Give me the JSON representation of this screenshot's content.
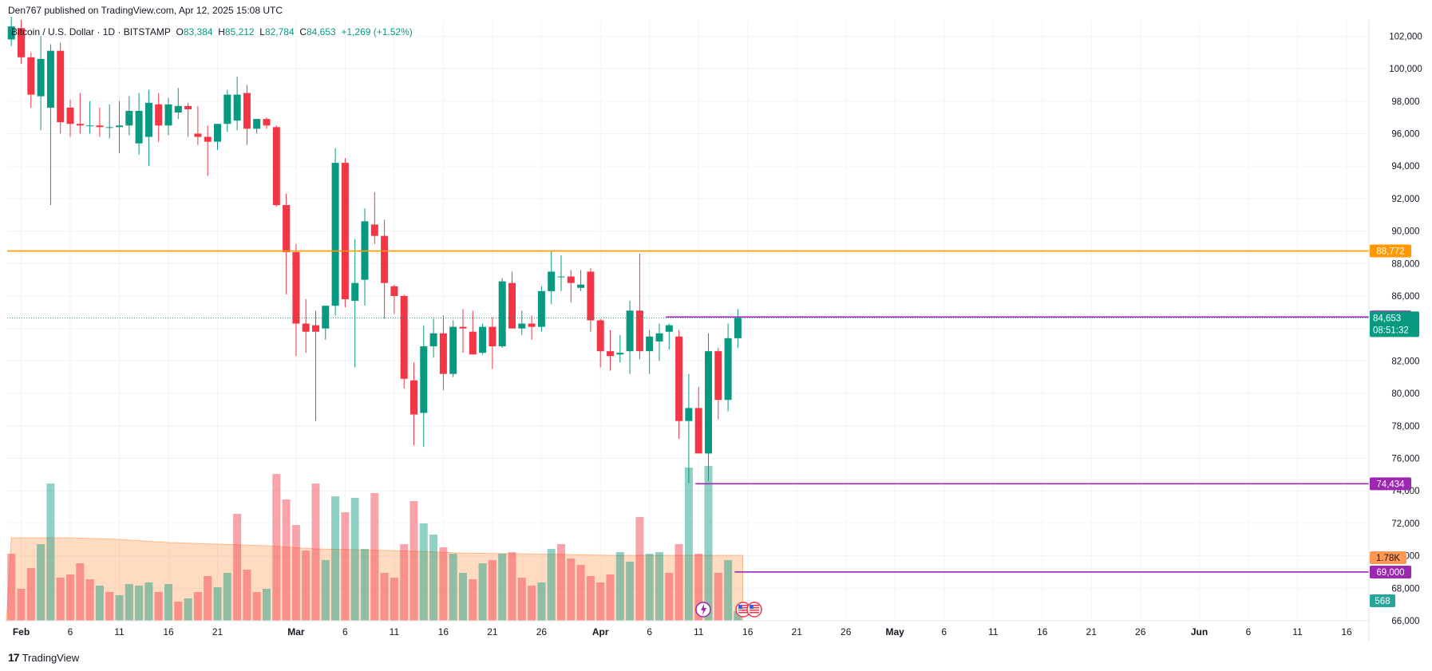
{
  "header": {
    "published": "Den767 published on TradingView.com, Apr 12, 2025 15:08 UTC"
  },
  "legend": {
    "symbol": "Bitcoin / U.S. Dollar · 1D · BITSTAMP",
    "o_label": "O",
    "o_value": "83,384",
    "h_label": "H",
    "h_value": "85,212",
    "l_label": "L",
    "l_value": "82,784",
    "c_label": "C",
    "c_value": "84,653",
    "change": "+1,269 (+1.52%)"
  },
  "footer": {
    "brand": "TradingView",
    "brand_mark": "17"
  },
  "colors": {
    "up": "#089981",
    "down": "#f23645",
    "vol_up": "rgba(8,153,129,0.45)",
    "vol_down": "rgba(242,54,69,0.45)",
    "vol_ma_fill": "rgba(255,152,80,0.35)",
    "orange_line": "#ff9800",
    "purple_line": "#9c27b0",
    "grid": "#f0f3fa",
    "axis_text": "#131722"
  },
  "chart_data": {
    "type": "candlestick",
    "y_axis": {
      "min": 66000,
      "max": 103000,
      "ticks": [
        66000,
        68000,
        70000,
        72000,
        74000,
        76000,
        78000,
        80000,
        82000,
        84000,
        86000,
        88000,
        90000,
        92000,
        94000,
        96000,
        98000,
        100000,
        102000
      ],
      "tick_labels": [
        "66,000",
        "68,000",
        "70,000",
        "72,000",
        "74,000",
        "76,000",
        "78,000",
        "80,000",
        "82,000",
        "84,000",
        "86,000",
        "88,000",
        "90,000",
        "92,000",
        "94,000",
        "96,000",
        "98,000",
        "100,000",
        "102,000"
      ]
    },
    "x_axis": {
      "labels": [
        {
          "day": 0,
          "text": "Feb",
          "bold": true
        },
        {
          "day": 5,
          "text": "6"
        },
        {
          "day": 10,
          "text": "11"
        },
        {
          "day": 15,
          "text": "16"
        },
        {
          "day": 20,
          "text": "21"
        },
        {
          "day": 28,
          "text": "Mar",
          "bold": true
        },
        {
          "day": 33,
          "text": "6"
        },
        {
          "day": 38,
          "text": "11"
        },
        {
          "day": 43,
          "text": "16"
        },
        {
          "day": 48,
          "text": "21"
        },
        {
          "day": 53,
          "text": "26"
        },
        {
          "day": 59,
          "text": "Apr",
          "bold": true
        },
        {
          "day": 64,
          "text": "6"
        },
        {
          "day": 69,
          "text": "11"
        },
        {
          "day": 74,
          "text": "16"
        },
        {
          "day": 79,
          "text": "21"
        },
        {
          "day": 84,
          "text": "26"
        },
        {
          "day": 89,
          "text": "May",
          "bold": true
        },
        {
          "day": 94,
          "text": "6"
        },
        {
          "day": 99,
          "text": "11"
        },
        {
          "day": 104,
          "text": "16"
        },
        {
          "day": 109,
          "text": "21"
        },
        {
          "day": 114,
          "text": "26"
        },
        {
          "day": 120,
          "text": "Jun",
          "bold": true
        },
        {
          "day": 125,
          "text": "6"
        },
        {
          "day": 130,
          "text": "11"
        },
        {
          "day": 135,
          "text": "16"
        }
      ]
    },
    "candles": [
      [
        -1,
        101800,
        103200,
        101400,
        102600
      ],
      [
        0,
        102500,
        103000,
        100300,
        100700
      ],
      [
        1,
        100700,
        101000,
        97600,
        98400
      ],
      [
        2,
        98300,
        102000,
        96200,
        100600
      ],
      [
        3,
        97600,
        101500,
        91600,
        101100
      ],
      [
        4,
        101100,
        101600,
        96000,
        96700
      ],
      [
        5,
        97600,
        98100,
        95800,
        96600
      ],
      [
        6,
        96600,
        98500,
        96000,
        96500
      ],
      [
        7,
        96500,
        98000,
        96000,
        96500
      ],
      [
        8,
        96500,
        97600,
        95800,
        96400
      ],
      [
        9,
        96400,
        97800,
        95700,
        96400
      ],
      [
        10,
        96400,
        98000,
        94800,
        96500
      ],
      [
        11,
        96500,
        98300,
        95900,
        97400
      ],
      [
        12,
        95400,
        98500,
        94700,
        97400
      ],
      [
        13,
        95800,
        98700,
        94000,
        97900
      ],
      [
        14,
        97800,
        98500,
        95500,
        96500
      ],
      [
        15,
        96500,
        98200,
        95900,
        97800
      ],
      [
        16,
        97300,
        98800,
        96900,
        97700
      ],
      [
        17,
        97700,
        97900,
        95800,
        97500
      ],
      [
        18,
        96000,
        97700,
        95300,
        95800
      ],
      [
        19,
        95800,
        96500,
        93400,
        95500
      ],
      [
        20,
        95500,
        96600,
        95000,
        96600
      ],
      [
        21,
        96600,
        98700,
        96100,
        98400
      ],
      [
        22,
        96800,
        99500,
        96200,
        98400
      ],
      [
        23,
        98500,
        99000,
        95300,
        96300
      ],
      [
        24,
        96300,
        96900,
        96000,
        96900
      ],
      [
        25,
        96900,
        97000,
        96300,
        96500
      ],
      [
        26,
        96400,
        96500,
        91500,
        91600
      ],
      [
        27,
        91600,
        92300,
        86100,
        88700
      ],
      [
        28,
        88700,
        89200,
        82300,
        84300
      ],
      [
        29,
        84300,
        85800,
        82500,
        83800
      ],
      [
        30,
        84200,
        85100,
        78300,
        83800
      ],
      [
        31,
        84000,
        85200,
        83300,
        85400
      ],
      [
        32,
        85400,
        95100,
        84800,
        94200
      ],
      [
        33,
        94200,
        94500,
        85300,
        85800
      ],
      [
        34,
        85700,
        89500,
        81600,
        86800
      ],
      [
        35,
        87000,
        91400,
        85400,
        90600
      ],
      [
        36,
        90400,
        92400,
        89200,
        89700
      ],
      [
        37,
        89700,
        90700,
        84600,
        86800
      ],
      [
        38,
        86600,
        86700,
        84900,
        86000
      ],
      [
        39,
        86000,
        86100,
        80300,
        80900
      ],
      [
        40,
        80800,
        81900,
        76800,
        78700
      ],
      [
        41,
        78800,
        84200,
        76700,
        82900
      ],
      [
        42,
        82900,
        84600,
        82200,
        83700
      ],
      [
        43,
        83700,
        84800,
        80200,
        81200
      ],
      [
        44,
        81200,
        84500,
        81000,
        84100
      ],
      [
        45,
        84100,
        85200,
        82500,
        84000
      ],
      [
        46,
        83800,
        85100,
        82500,
        82400
      ],
      [
        47,
        82500,
        84300,
        82400,
        84100
      ],
      [
        48,
        84100,
        84700,
        81500,
        82900
      ],
      [
        49,
        82900,
        87100,
        82800,
        86900
      ],
      [
        50,
        86800,
        87500,
        84200,
        84000
      ],
      [
        51,
        84000,
        85100,
        83600,
        84300
      ],
      [
        52,
        84300,
        84800,
        83300,
        84100
      ],
      [
        53,
        84100,
        86600,
        83800,
        86300
      ],
      [
        54,
        86300,
        88800,
        85500,
        87500
      ],
      [
        55,
        87200,
        88500,
        86300,
        87200
      ],
      [
        56,
        87200,
        87600,
        85600,
        86800
      ],
      [
        57,
        86500,
        87600,
        86300,
        86700
      ],
      [
        58,
        87500,
        87700,
        83800,
        84500
      ],
      [
        59,
        84500,
        84600,
        81600,
        82600
      ],
      [
        60,
        82600,
        83900,
        81400,
        82300
      ],
      [
        61,
        82400,
        83600,
        81900,
        82500
      ],
      [
        62,
        82600,
        85700,
        81200,
        85100
      ],
      [
        63,
        85100,
        88600,
        82100,
        82600
      ],
      [
        64,
        82600,
        83900,
        81200,
        83500
      ],
      [
        65,
        83200,
        84300,
        82000,
        83700
      ],
      [
        66,
        83800,
        84300,
        82700,
        84200
      ],
      [
        67,
        83500,
        83900,
        77200,
        78300
      ],
      [
        68,
        78300,
        81200,
        74500,
        79100
      ],
      [
        69,
        79100,
        80400,
        76300,
        76300
      ],
      [
        70,
        76300,
        83700,
        74600,
        82600
      ],
      [
        71,
        82600,
        82800,
        78400,
        79600
      ],
      [
        72,
        79600,
        84300,
        78900,
        83400
      ],
      [
        73,
        83400,
        85200,
        82800,
        84653
      ]
    ],
    "volume": {
      "axis_label": "1.78K",
      "last_label": "568",
      "values": [
        [
          -1,
          210,
          0
        ],
        [
          0,
          100,
          0
        ],
        [
          1,
          165,
          0
        ],
        [
          2,
          240,
          1
        ],
        [
          3,
          430,
          1
        ],
        [
          4,
          135,
          0
        ],
        [
          5,
          145,
          0
        ],
        [
          6,
          180,
          0
        ],
        [
          7,
          130,
          0
        ],
        [
          8,
          110,
          1
        ],
        [
          9,
          90,
          0
        ],
        [
          10,
          80,
          1
        ],
        [
          11,
          115,
          1
        ],
        [
          12,
          110,
          1
        ],
        [
          13,
          120,
          1
        ],
        [
          14,
          90,
          0
        ],
        [
          15,
          115,
          1
        ],
        [
          16,
          60,
          0
        ],
        [
          17,
          70,
          1
        ],
        [
          18,
          90,
          0
        ],
        [
          19,
          140,
          0
        ],
        [
          20,
          105,
          1
        ],
        [
          21,
          150,
          1
        ],
        [
          22,
          335,
          0
        ],
        [
          23,
          160,
          0
        ],
        [
          24,
          90,
          0
        ],
        [
          25,
          100,
          1
        ],
        [
          26,
          460,
          0
        ],
        [
          27,
          380,
          0
        ],
        [
          28,
          300,
          0
        ],
        [
          29,
          220,
          0
        ],
        [
          30,
          430,
          0
        ],
        [
          31,
          190,
          1
        ],
        [
          32,
          390,
          1
        ],
        [
          33,
          340,
          0
        ],
        [
          34,
          385,
          1
        ],
        [
          35,
          225,
          1
        ],
        [
          36,
          400,
          0
        ],
        [
          37,
          150,
          0
        ],
        [
          38,
          135,
          0
        ],
        [
          39,
          240,
          0
        ],
        [
          40,
          375,
          0
        ],
        [
          41,
          305,
          1
        ],
        [
          42,
          270,
          1
        ],
        [
          43,
          230,
          0
        ],
        [
          44,
          210,
          1
        ],
        [
          45,
          150,
          1
        ],
        [
          46,
          130,
          0
        ],
        [
          47,
          180,
          1
        ],
        [
          48,
          190,
          0
        ],
        [
          49,
          210,
          1
        ],
        [
          50,
          215,
          0
        ],
        [
          51,
          135,
          0
        ],
        [
          52,
          110,
          0
        ],
        [
          53,
          120,
          1
        ],
        [
          54,
          225,
          1
        ],
        [
          55,
          240,
          0
        ],
        [
          56,
          195,
          0
        ],
        [
          57,
          175,
          0
        ],
        [
          58,
          140,
          0
        ],
        [
          59,
          120,
          0
        ],
        [
          60,
          145,
          0
        ],
        [
          61,
          215,
          1
        ],
        [
          62,
          185,
          1
        ],
        [
          63,
          325,
          0
        ],
        [
          64,
          210,
          1
        ],
        [
          65,
          215,
          1
        ],
        [
          66,
          150,
          0
        ],
        [
          67,
          240,
          0
        ],
        [
          68,
          480,
          1
        ],
        [
          69,
          210,
          0
        ],
        [
          70,
          485,
          1
        ],
        [
          71,
          150,
          0
        ],
        [
          72,
          190,
          1
        ],
        [
          73,
          30,
          1
        ]
      ],
      "ma": [
        [
          -1,
          260
        ],
        [
          5,
          260
        ],
        [
          10,
          255
        ],
        [
          15,
          245
        ],
        [
          20,
          240
        ],
        [
          25,
          235
        ],
        [
          30,
          225
        ],
        [
          35,
          222
        ],
        [
          40,
          218
        ],
        [
          45,
          212
        ],
        [
          50,
          210
        ],
        [
          55,
          208
        ],
        [
          60,
          205
        ],
        [
          65,
          205
        ],
        [
          70,
          205
        ],
        [
          73,
          205
        ]
      ]
    },
    "price_lines": [
      {
        "name": "resistance",
        "value": 88772,
        "label": "88,772",
        "color": "#ff9800",
        "start_day": -1
      },
      {
        "name": "level-84708",
        "value": 84708,
        "label": "84,708",
        "color": "#9c27b0",
        "start_day": 66
      },
      {
        "name": "level-74434",
        "value": 74434,
        "label": "74,434",
        "color": "#9c27b0",
        "start_day": 69
      },
      {
        "name": "level-69000",
        "value": 69000,
        "label": "69,000",
        "color": "#9c27b0",
        "start_day": 73
      }
    ],
    "last_price": {
      "value": 84653,
      "label": "84,653",
      "countdown": "08:51:32"
    }
  }
}
